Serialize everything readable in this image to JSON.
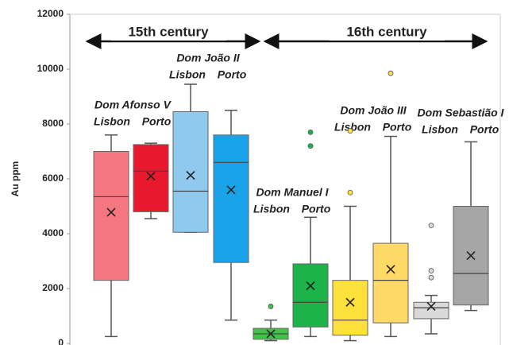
{
  "chart_data": {
    "type": "box",
    "ylabel": "Au ppm",
    "ylim": [
      0,
      12000
    ],
    "yticks": [
      0,
      2000,
      4000,
      6000,
      8000,
      10000,
      12000
    ],
    "periods": [
      "15th century",
      "16th century"
    ],
    "reigns": [
      {
        "name": "Dom Afonso V",
        "sites": [
          "Lisbon",
          "Porto"
        ]
      },
      {
        "name": "Dom João II",
        "sites": [
          "Lisbon",
          "Porto"
        ]
      },
      {
        "name": "Dom Manuel I",
        "sites": [
          "Lisbon",
          "Porto"
        ]
      },
      {
        "name": "Dom João III",
        "sites": [
          "Lisbon",
          "Porto"
        ]
      },
      {
        "name": "Dom Sebastião I",
        "sites": [
          "Lisbon",
          "Porto"
        ]
      }
    ],
    "series": [
      {
        "color": "#f5777f",
        "min": 250,
        "q1": 2300,
        "median": 5350,
        "q3": 7000,
        "max": 7600,
        "mean": 4780,
        "outliers": []
      },
      {
        "color": "#e8192c",
        "min": 4550,
        "q1": 4800,
        "median": 6280,
        "q3": 7250,
        "max": 7300,
        "mean": 6100,
        "outliers": []
      },
      {
        "color": "#8fc9ee",
        "min": 4050,
        "q1": 4050,
        "median": 5550,
        "q3": 8450,
        "max": 9450,
        "mean": 6130,
        "outliers": []
      },
      {
        "color": "#1aa3e8",
        "min": 850,
        "q1": 2950,
        "median": 6600,
        "q3": 7600,
        "max": 8500,
        "mean": 5600,
        "outliers": []
      },
      {
        "color": "#43c24a",
        "min": 100,
        "q1": 150,
        "median": 350,
        "q3": 550,
        "max": 850,
        "mean": 350,
        "outliers": [
          1350
        ]
      },
      {
        "color": "#1bb34a",
        "min": 250,
        "q1": 600,
        "median": 1500,
        "q3": 2900,
        "max": 4600,
        "mean": 2100,
        "outliers": [
          7200,
          7700
        ]
      },
      {
        "color": "#ffe13c",
        "min": 100,
        "q1": 300,
        "median": 850,
        "q3": 2300,
        "max": 5000,
        "mean": 1500,
        "outliers": [
          5500,
          7750
        ]
      },
      {
        "color": "#ffd966",
        "min": 250,
        "q1": 750,
        "median": 2300,
        "q3": 3650,
        "max": 7550,
        "mean": 2700,
        "outliers": [
          9850
        ]
      },
      {
        "color": "#d9d9d9",
        "min": 350,
        "q1": 900,
        "median": 1300,
        "q3": 1500,
        "max": 1750,
        "mean": 1350,
        "outliers": [
          2400,
          2650,
          4300
        ]
      },
      {
        "color": "#a6a6a6",
        "min": 1200,
        "q1": 1400,
        "median": 2550,
        "q3": 5000,
        "max": 7350,
        "mean": 3200,
        "outliers": []
      }
    ]
  }
}
